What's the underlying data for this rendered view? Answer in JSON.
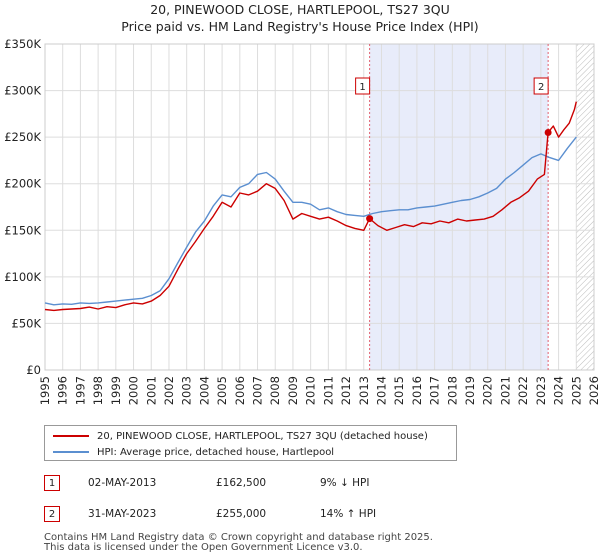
{
  "chart_data": {
    "type": "line",
    "title": "20, PINEWOOD CLOSE, HARTLEPOOL, TS27 3QU",
    "subtitle": "Price paid vs. HM Land Registry's House Price Index (HPI)",
    "xlim": [
      1995,
      2026
    ],
    "ylim": [
      0,
      350000
    ],
    "x_ticks": [
      1995,
      1996,
      1997,
      1998,
      1999,
      2000,
      2001,
      2002,
      2003,
      2004,
      2005,
      2006,
      2007,
      2008,
      2009,
      2010,
      2011,
      2012,
      2013,
      2014,
      2015,
      2016,
      2017,
      2018,
      2019,
      2020,
      2021,
      2022,
      2023,
      2024,
      2025,
      2026
    ],
    "y_ticks": [
      {
        "value": 0,
        "label": "£0"
      },
      {
        "value": 50000,
        "label": "£50K"
      },
      {
        "value": 100000,
        "label": "£100K"
      },
      {
        "value": 150000,
        "label": "£150K"
      },
      {
        "value": 200000,
        "label": "£200K"
      },
      {
        "value": 250000,
        "label": "£250K"
      },
      {
        "value": 300000,
        "label": "£300K"
      },
      {
        "value": 350000,
        "label": "£350K"
      }
    ],
    "grid": true,
    "shaded_region": [
      2013.33,
      2023.41
    ],
    "hatched_region": [
      2025.0,
      2026
    ],
    "series": [
      {
        "name": "20, PINEWOOD CLOSE, HARTLEPOOL, TS27 3QU (detached house)",
        "color": "#cc0000",
        "x": [
          1995,
          1995.5,
          1996,
          1996.5,
          1997,
          1997.5,
          1998,
          1998.5,
          1999,
          1999.5,
          2000,
          2000.5,
          2001,
          2001.5,
          2002,
          2002.5,
          2003,
          2003.5,
          2004,
          2004.5,
          2005,
          2005.5,
          2006,
          2006.5,
          2007,
          2007.5,
          2008,
          2008.5,
          2009,
          2009.5,
          2010,
          2010.5,
          2011,
          2011.5,
          2012,
          2012.5,
          2013,
          2013.33,
          2013.8,
          2014.3,
          2014.8,
          2015.3,
          2015.8,
          2016.3,
          2016.8,
          2017.3,
          2017.8,
          2018.3,
          2018.8,
          2019.3,
          2019.8,
          2020.3,
          2020.8,
          2021.3,
          2021.8,
          2022.3,
          2022.8,
          2023.2,
          2023.41,
          2023.7,
          2024.0,
          2024.3,
          2024.6,
          2024.9,
          2025.0
        ],
        "y": [
          65000,
          64000,
          65000,
          65500,
          66000,
          67500,
          65500,
          68000,
          67000,
          70000,
          72000,
          71000,
          74000,
          80000,
          90000,
          108000,
          125000,
          138000,
          152000,
          165000,
          180000,
          175000,
          190000,
          188000,
          192000,
          200000,
          195000,
          182000,
          162000,
          168000,
          165000,
          162000,
          164000,
          160000,
          155000,
          152000,
          150000,
          162500,
          155000,
          150000,
          153000,
          156000,
          154000,
          158000,
          157000,
          160000,
          158000,
          162000,
          160000,
          161000,
          162000,
          165000,
          172000,
          180000,
          185000,
          192000,
          205000,
          210000,
          255000,
          262000,
          250000,
          258000,
          265000,
          280000,
          288000
        ]
      },
      {
        "name": "HPI: Average price, detached house, Hartlepool",
        "color": "#5b8fd0",
        "x": [
          1995,
          1995.5,
          1996,
          1996.5,
          1997,
          1997.5,
          1998,
          1998.5,
          1999,
          1999.5,
          2000,
          2000.5,
          2001,
          2001.5,
          2002,
          2002.5,
          2003,
          2003.5,
          2004,
          2004.5,
          2005,
          2005.5,
          2006,
          2006.5,
          2007,
          2007.5,
          2008,
          2008.5,
          2009,
          2009.5,
          2010,
          2010.5,
          2011,
          2011.5,
          2012,
          2012.5,
          2013,
          2013.5,
          2014,
          2014.5,
          2015,
          2015.5,
          2016,
          2016.5,
          2017,
          2017.5,
          2018,
          2018.5,
          2019,
          2019.5,
          2020,
          2020.5,
          2021,
          2021.5,
          2022,
          2022.5,
          2023,
          2023.5,
          2024,
          2024.5,
          2025.0
        ],
        "y": [
          72000,
          70000,
          71000,
          70500,
          72000,
          71500,
          72000,
          73000,
          74000,
          75000,
          76000,
          77000,
          80000,
          85000,
          98000,
          115000,
          132000,
          148000,
          160000,
          176000,
          188000,
          186000,
          196000,
          200000,
          210000,
          212000,
          205000,
          192000,
          180000,
          180000,
          178000,
          172000,
          174000,
          170000,
          167000,
          166000,
          165000,
          168000,
          170000,
          171000,
          172000,
          172000,
          174000,
          175000,
          176000,
          178000,
          180000,
          182000,
          183000,
          186000,
          190000,
          195000,
          205000,
          212000,
          220000,
          228000,
          232000,
          228000,
          225000,
          238000,
          250000
        ]
      }
    ],
    "sale_markers": [
      {
        "label": "1",
        "x": 2013.33,
        "y": 162500
      },
      {
        "label": "2",
        "x": 2023.41,
        "y": 255000
      }
    ]
  },
  "legend": [
    {
      "label": "20, PINEWOOD CLOSE, HARTLEPOOL, TS27 3QU (detached house)",
      "color": "#cc0000"
    },
    {
      "label": "HPI: Average price, detached house, Hartlepool",
      "color": "#5b8fd0"
    }
  ],
  "sales": [
    {
      "num": "1",
      "date": "02-MAY-2013",
      "price": "£162,500",
      "hpi": "9% ↓ HPI"
    },
    {
      "num": "2",
      "date": "31-MAY-2023",
      "price": "£255,000",
      "hpi": "14% ↑ HPI"
    }
  ],
  "footer": {
    "line1": "Contains HM Land Registry data © Crown copyright and database right 2025.",
    "line2": "This data is licensed under the Open Government Licence v3.0."
  }
}
